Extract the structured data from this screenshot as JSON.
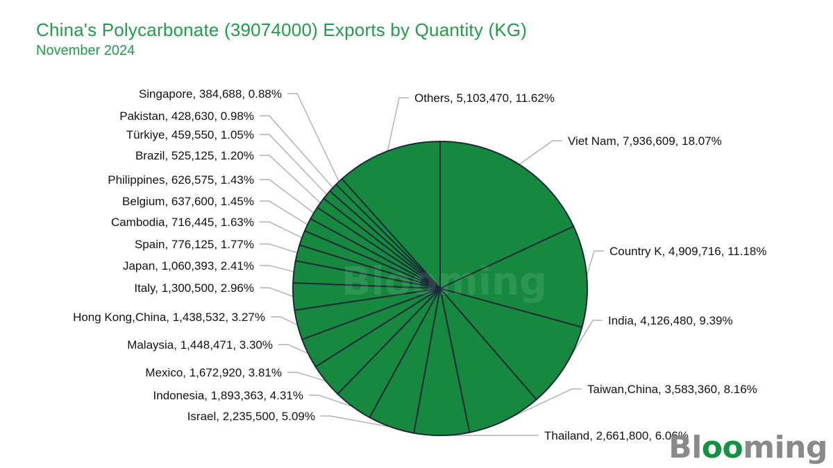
{
  "header": {
    "title": "China's Polycarbonate (39074000) Exports by Quantity (KG)",
    "subtitle": "November 2024"
  },
  "brand": {
    "logo_text": "Blooming",
    "watermark_text": "Blooming",
    "logo_color": "#8a8a8a",
    "logo_accent": "#0f9440"
  },
  "colors": {
    "slice_fill": "#16893f",
    "slice_stroke": "#1c2a3a",
    "label_text": "#111111",
    "leader_line": "#b0b0b0",
    "title": "#1e9e48"
  },
  "chart_data": {
    "type": "pie",
    "title": "China's Polycarbonate (39074000) Exports by Quantity (KG)",
    "subtitle": "November 2024",
    "units": "KG",
    "start": "12 o'clock",
    "direction": "clockwise",
    "slices": [
      {
        "label": "Viet Nam, 7,936,609, 18.07%",
        "name": "Viet Nam",
        "value": 7936609,
        "percent": 18.07
      },
      {
        "label": "Country K, 4,909,716, 11.18%",
        "name": "Country K",
        "value": 4909716,
        "percent": 11.18
      },
      {
        "label": "India, 4,126,480, 9.39%",
        "name": "India",
        "value": 4126480,
        "percent": 9.39
      },
      {
        "label": "Taiwan,China, 3,583,360, 8.16%",
        "name": "Taiwan,China",
        "value": 3583360,
        "percent": 8.16
      },
      {
        "label": "Thailand, 2,661,800, 6.06%",
        "name": "Thailand",
        "value": 2661800,
        "percent": 6.06
      },
      {
        "label": "Israel, 2,235,500, 5.09%",
        "name": "Israel",
        "value": 2235500,
        "percent": 5.09
      },
      {
        "label": "Indonesia, 1,893,363, 4.31%",
        "name": "Indonesia",
        "value": 1893363,
        "percent": 4.31
      },
      {
        "label": "Mexico, 1,672,920, 3.81%",
        "name": "Mexico",
        "value": 1672920,
        "percent": 3.81
      },
      {
        "label": "Malaysia, 1,448,471, 3.30%",
        "name": "Malaysia",
        "value": 1448471,
        "percent": 3.3
      },
      {
        "label": "Hong Kong,China, 1,438,532, 3.27%",
        "name": "Hong Kong,China",
        "value": 1438532,
        "percent": 3.27
      },
      {
        "label": "Italy, 1,300,500, 2.96%",
        "name": "Italy",
        "value": 1300500,
        "percent": 2.96
      },
      {
        "label": "Japan, 1,060,393, 2.41%",
        "name": "Japan",
        "value": 1060393,
        "percent": 2.41
      },
      {
        "label": "Spain, 776,125, 1.77%",
        "name": "Spain",
        "value": 776125,
        "percent": 1.77
      },
      {
        "label": "Cambodia, 716,445, 1.63%",
        "name": "Cambodia",
        "value": 716445,
        "percent": 1.63
      },
      {
        "label": "Belgium, 637,600, 1.45%",
        "name": "Belgium",
        "value": 637600,
        "percent": 1.45
      },
      {
        "label": "Philippines, 626,575, 1.43%",
        "name": "Philippines",
        "value": 626575,
        "percent": 1.43
      },
      {
        "label": "Brazil, 525,125, 1.20%",
        "name": "Brazil",
        "value": 525125,
        "percent": 1.2
      },
      {
        "label": "Türkiye, 459,550, 1.05%",
        "name": "Türkiye",
        "value": 459550,
        "percent": 1.05
      },
      {
        "label": "Pakistan, 428,630, 0.98%",
        "name": "Pakistan",
        "value": 428630,
        "percent": 0.98
      },
      {
        "label": "Singapore, 384,688, 0.88%",
        "name": "Singapore",
        "value": 384688,
        "percent": 0.88
      },
      {
        "label": "Others, 5,103,470, 11.62%",
        "name": "Others",
        "value": 5103470,
        "percent": 11.62
      }
    ]
  }
}
